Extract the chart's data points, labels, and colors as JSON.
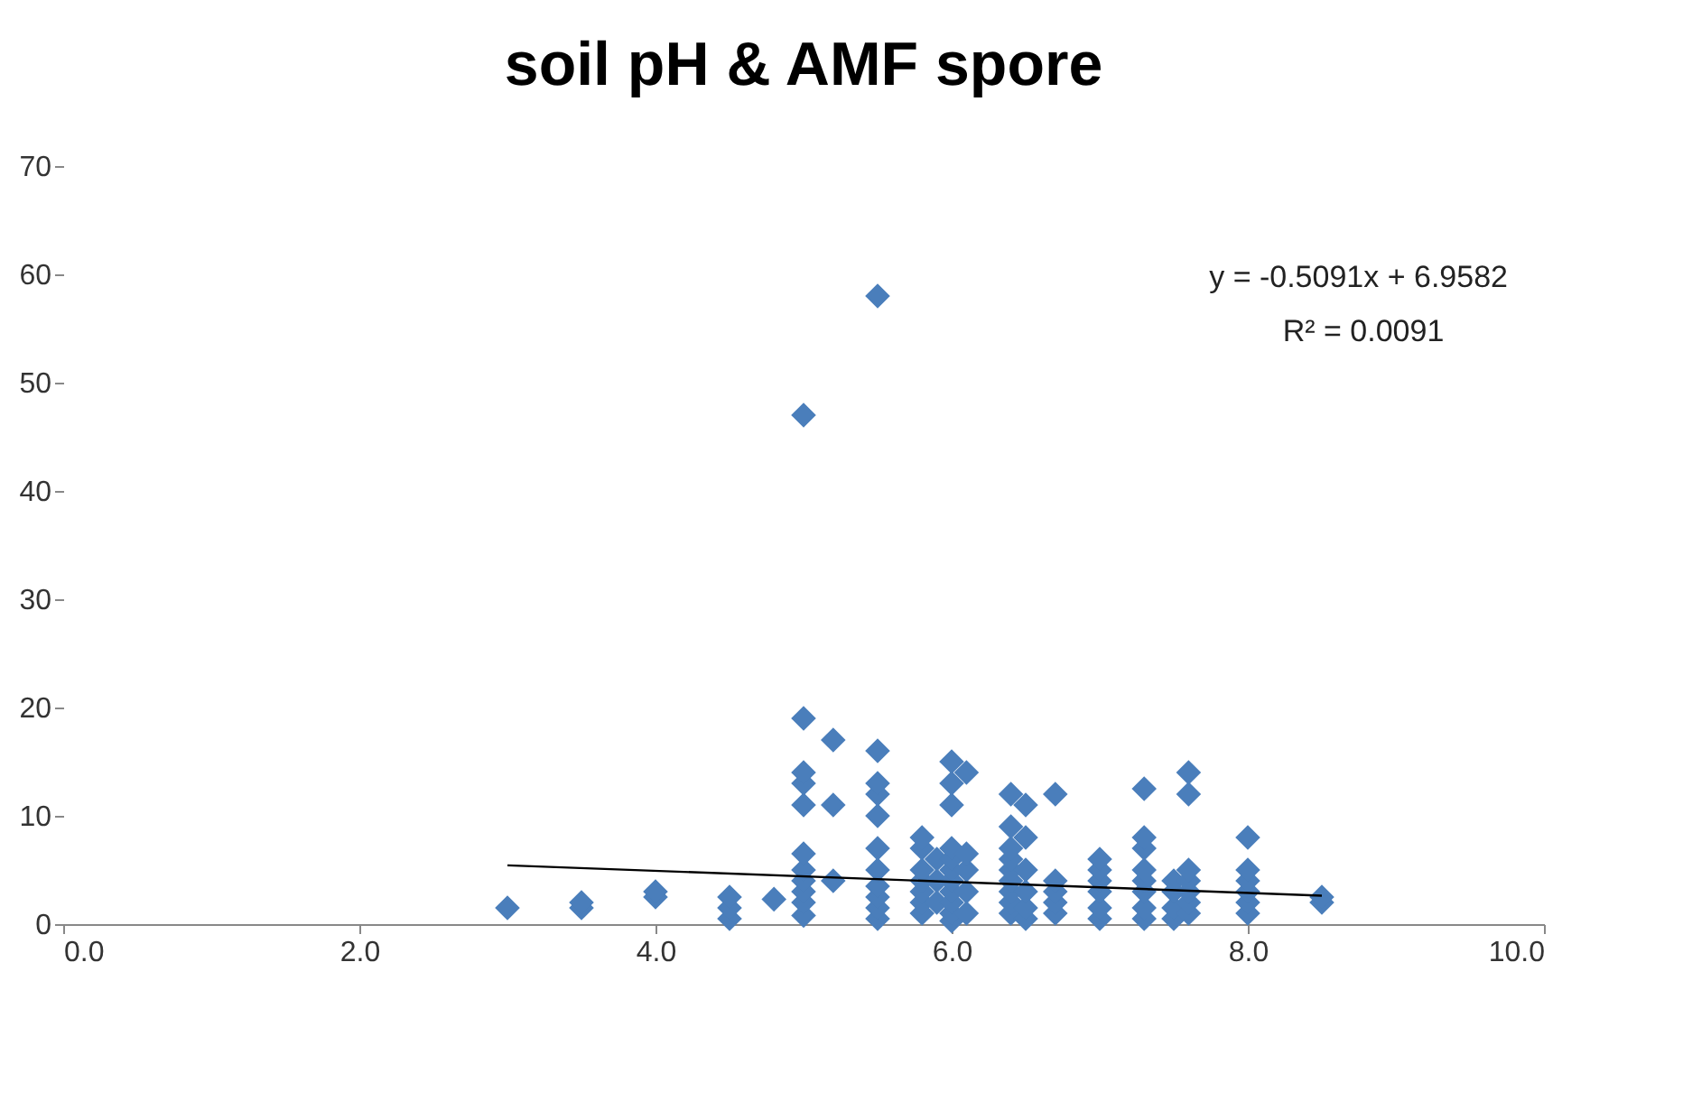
{
  "chart_data": {
    "type": "scatter",
    "title": "soil pH & AMF spore",
    "series": [
      {
        "color": "#4a7ebb",
        "marker": "diamond",
        "x": [
          3.0,
          3.5,
          3.5,
          4.0,
          4.0,
          4.5,
          4.5,
          4.5,
          4.8,
          5.0,
          5.0,
          5.0,
          5.0,
          5.0,
          5.0,
          5.0,
          5.0,
          5.0,
          5.0,
          5.0,
          5.2,
          5.2,
          5.2,
          5.5,
          5.5,
          5.5,
          5.5,
          5.5,
          5.5,
          5.5,
          5.5,
          5.5,
          5.5,
          5.5,
          5.8,
          5.8,
          5.8,
          5.8,
          5.8,
          5.8,
          5.8,
          5.9,
          5.9,
          5.9,
          6.0,
          6.0,
          6.0,
          6.0,
          6.0,
          6.0,
          6.0,
          6.0,
          6.0,
          6.0,
          6.0,
          6.1,
          6.1,
          6.1,
          6.1,
          6.1,
          6.4,
          6.4,
          6.4,
          6.4,
          6.4,
          6.4,
          6.4,
          6.4,
          6.4,
          6.5,
          6.5,
          6.5,
          6.5,
          6.5,
          6.5,
          6.7,
          6.7,
          6.7,
          6.7,
          6.7,
          7.0,
          7.0,
          7.0,
          7.0,
          7.0,
          7.0,
          7.3,
          7.3,
          7.3,
          7.3,
          7.3,
          7.3,
          7.3,
          7.3,
          7.5,
          7.5,
          7.5,
          7.5,
          7.6,
          7.6,
          7.6,
          7.6,
          7.6,
          7.6,
          7.6,
          8.0,
          8.0,
          8.0,
          8.0,
          8.0,
          8.0,
          8.5,
          8.5
        ],
        "values": [
          1.5,
          1.5,
          2,
          2.5,
          3,
          0.5,
          1.5,
          2.5,
          2.3,
          0.8,
          2,
          3,
          4,
          5,
          6.5,
          11,
          13,
          14,
          19,
          47,
          4,
          11,
          17,
          0.5,
          1.5,
          2.5,
          3.5,
          5,
          7,
          10,
          12,
          13,
          16,
          58,
          1,
          2,
          3,
          4,
          5,
          7,
          8,
          2,
          4,
          6,
          0.3,
          1,
          2,
          3,
          4,
          5,
          6,
          7,
          11,
          13,
          15,
          1,
          3,
          5,
          6.5,
          14,
          1,
          2,
          3,
          4,
          5,
          6,
          7,
          9,
          12,
          0.5,
          1.5,
          3,
          5,
          8,
          11,
          1,
          2,
          3,
          4,
          12,
          0.5,
          1.5,
          3,
          4,
          5,
          6,
          0.5,
          1.5,
          3,
          4,
          5,
          7,
          8,
          12.5,
          0.5,
          1.5,
          3,
          4,
          1,
          2,
          3,
          4,
          5,
          12,
          14,
          1,
          2,
          3,
          4,
          5,
          8,
          2,
          2.5
        ]
      },
      {
        "type": "line",
        "color": "#000000",
        "x": [
          3.0,
          8.5
        ],
        "values": [
          5.43,
          2.63
        ]
      }
    ],
    "annotations": [
      "y = -0.5091x + 6.9582",
      "R² = 0.0091"
    ],
    "xlim": [
      0,
      10
    ],
    "xticks": [
      {
        "value": 0,
        "label": "0.0"
      },
      {
        "value": 2,
        "label": "2.0"
      },
      {
        "value": 4,
        "label": "4.0"
      },
      {
        "value": 6,
        "label": "6.0"
      },
      {
        "value": 8,
        "label": "8.0"
      },
      {
        "value": 10,
        "label": "10.0"
      }
    ],
    "ylim": [
      0,
      70
    ],
    "yticks": [
      0,
      10,
      20,
      30,
      40,
      50,
      60,
      70
    ],
    "grid": false
  }
}
